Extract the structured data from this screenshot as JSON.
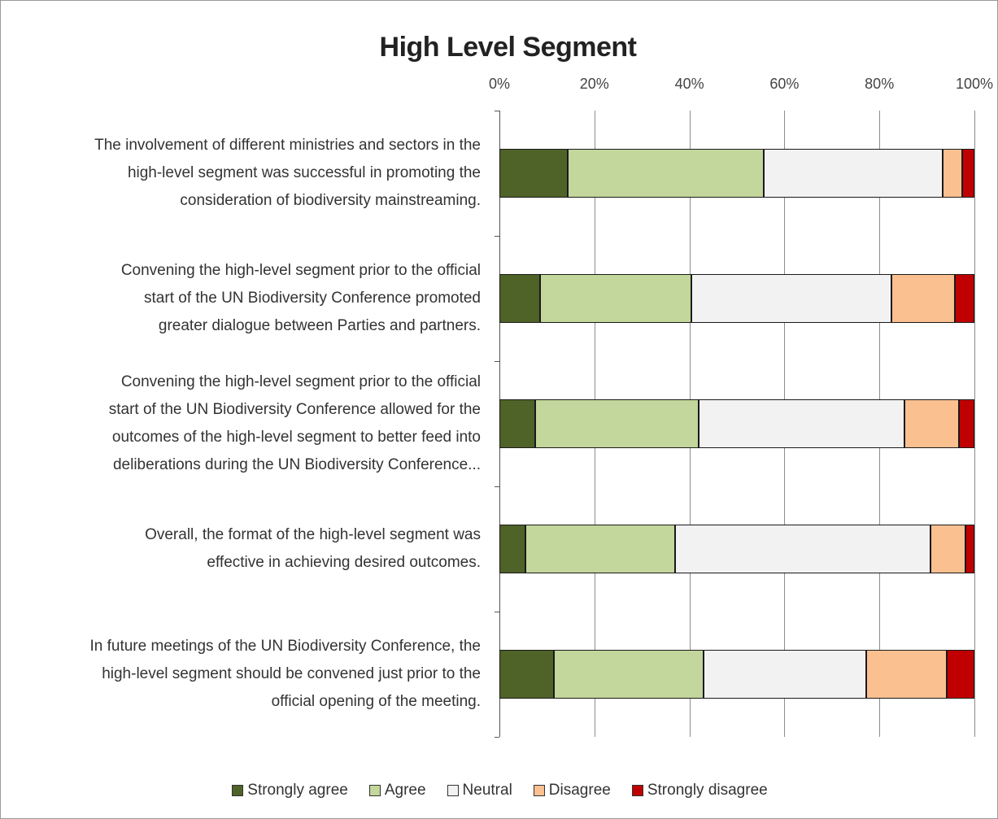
{
  "chart_data": {
    "type": "bar",
    "orientation": "horizontal",
    "stacked": true,
    "title": "High Level Segment",
    "categories": [
      "The involvement of different ministries and sectors in the\nhigh-level segment was successful in promoting the\nconsideration of biodiversity mainstreaming.",
      "Convening the high-level segment prior to the official\nstart of the UN Biodiversity Conference promoted\ngreater dialogue between Parties and partners.",
      "Convening the high-level segment prior to the official\nstart of the UN Biodiversity Conference allowed for the\noutcomes of the high-level segment to better feed into\ndeliberations during the UN Biodiversity Conference...",
      "Overall, the format of the high-level segment was\neffective in achieving desired outcomes.",
      "In future meetings of the UN Biodiversity Conference, the\nhigh-level segment should be convened just prior to the\nofficial opening of the meeting."
    ],
    "series": [
      {
        "name": "Strongly agree",
        "color": "#4f6228",
        "values": [
          14.4,
          8.6,
          7.5,
          5.5,
          11.5
        ]
      },
      {
        "name": "Agree",
        "color": "#c3d69b",
        "values": [
          41.3,
          31.8,
          34.5,
          31.5,
          31.5
        ]
      },
      {
        "name": "Neutral",
        "color": "#f2f2f2",
        "values": [
          37.7,
          42.1,
          43.3,
          53.8,
          34.2
        ]
      },
      {
        "name": "Disagree",
        "color": "#fac090",
        "values": [
          4.1,
          13.4,
          11.4,
          7.3,
          17.0
        ]
      },
      {
        "name": "Strongly disagree",
        "color": "#c00000",
        "values": [
          2.5,
          4.1,
          3.3,
          1.9,
          5.8
        ]
      }
    ],
    "xlim": [
      0,
      100
    ],
    "xticks": [
      {
        "value": 0,
        "label": "0%"
      },
      {
        "value": 20,
        "label": "20%"
      },
      {
        "value": 40,
        "label": "40%"
      },
      {
        "value": 60,
        "label": "60%"
      },
      {
        "value": 80,
        "label": "80%"
      },
      {
        "value": 100,
        "label": "100%"
      }
    ],
    "grid": true,
    "legend": "bottom"
  }
}
